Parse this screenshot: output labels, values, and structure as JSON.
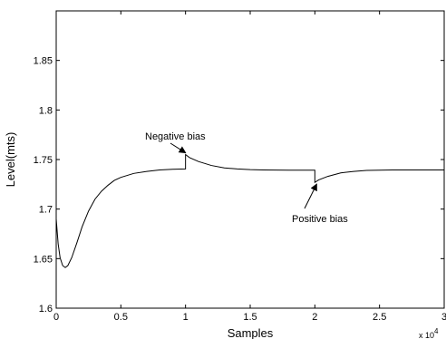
{
  "chart_data": {
    "type": "line",
    "title": "",
    "xlabel": "Samples",
    "ylabel": "Level(mts)",
    "xlim": [
      0,
      30000
    ],
    "ylim": [
      1.6,
      1.9
    ],
    "grid": false,
    "x_ticks": [
      0,
      5000,
      10000,
      15000,
      20000,
      25000,
      30000
    ],
    "x_tick_labels": [
      "0",
      "0.5",
      "1",
      "1.5",
      "2",
      "2.5",
      "3"
    ],
    "x_exponent_label": "x 10",
    "x_exponent_power": "4",
    "y_ticks": [
      1.6,
      1.65,
      1.7,
      1.75,
      1.8,
      1.85
    ],
    "y_tick_labels": [
      "1.6",
      "1.65",
      "1.7",
      "1.75",
      "1.8",
      "1.85"
    ],
    "series": [
      {
        "color": "#000000",
        "x": [
          0,
          150,
          300,
          500,
          700,
          900,
          1200,
          1600,
          2000,
          2500,
          3000,
          3500,
          4000,
          4500,
          5000,
          6000,
          7000,
          8000,
          9000,
          9999,
          10000,
          10300,
          11000,
          12000,
          13000,
          14000,
          15000,
          16000,
          18000,
          19999,
          20000,
          20300,
          21000,
          22000,
          23000,
          24000,
          26000,
          28000,
          30000
        ],
        "y": [
          1.69,
          1.665,
          1.651,
          1.643,
          1.641,
          1.643,
          1.651,
          1.666,
          1.682,
          1.698,
          1.71,
          1.718,
          1.724,
          1.729,
          1.732,
          1.736,
          1.738,
          1.7395,
          1.7402,
          1.7405,
          1.755,
          1.752,
          1.748,
          1.744,
          1.7415,
          1.7405,
          1.7398,
          1.7395,
          1.7393,
          1.7393,
          1.727,
          1.7295,
          1.733,
          1.7365,
          1.738,
          1.739,
          1.7395,
          1.7395,
          1.7395
        ]
      }
    ],
    "annotations": [
      {
        "text": "Negative bias",
        "x": 10000,
        "y": 1.755
      },
      {
        "text": "Positive bias",
        "x": 20000,
        "y": 1.727
      }
    ]
  }
}
